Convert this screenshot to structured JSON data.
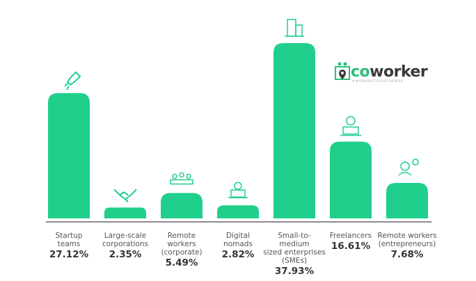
{
  "chart_data": {
    "type": "bar",
    "categories": [
      "Startup teams",
      "Large-scale corporations",
      "Remote workers (corporate)",
      "Digital nomads",
      "Small-to-medium sized enterprises (SMEs)",
      "Freelancers",
      "Remote workers (entrepreneurs)"
    ],
    "label_lines": [
      [
        "Startup",
        "teams"
      ],
      [
        "Large-scale",
        "corporations"
      ],
      [
        "Remote",
        "workers",
        "(corporate)"
      ],
      [
        "Digital",
        "nomads"
      ],
      [
        "Small-to-medium",
        "sized enterprises",
        "(SMEs)"
      ],
      [
        "Freelancers"
      ],
      [
        "Remote workers",
        "(entrepreneurs)"
      ]
    ],
    "values": [
      27.12,
      2.35,
      5.49,
      2.82,
      37.93,
      16.61,
      7.68
    ],
    "value_labels": [
      "27.12%",
      "2.35%",
      "5.49%",
      "2.82%",
      "37.93%",
      "16.61%",
      "7.68%"
    ],
    "icons": [
      "rocket-icon",
      "handshake-icon",
      "team-icon",
      "laptop-user-icon",
      "building-icon",
      "freelancer-icon",
      "entrepreneur-icon"
    ],
    "bar_color": "#1fcf8b",
    "ylim": [
      0,
      37.93
    ],
    "grid": false
  },
  "logo": {
    "text_co": "co",
    "text_rest": "worker",
    "tagline": "#WORKOUTSIDETHEBOX",
    "color": "#2bbf7a"
  }
}
